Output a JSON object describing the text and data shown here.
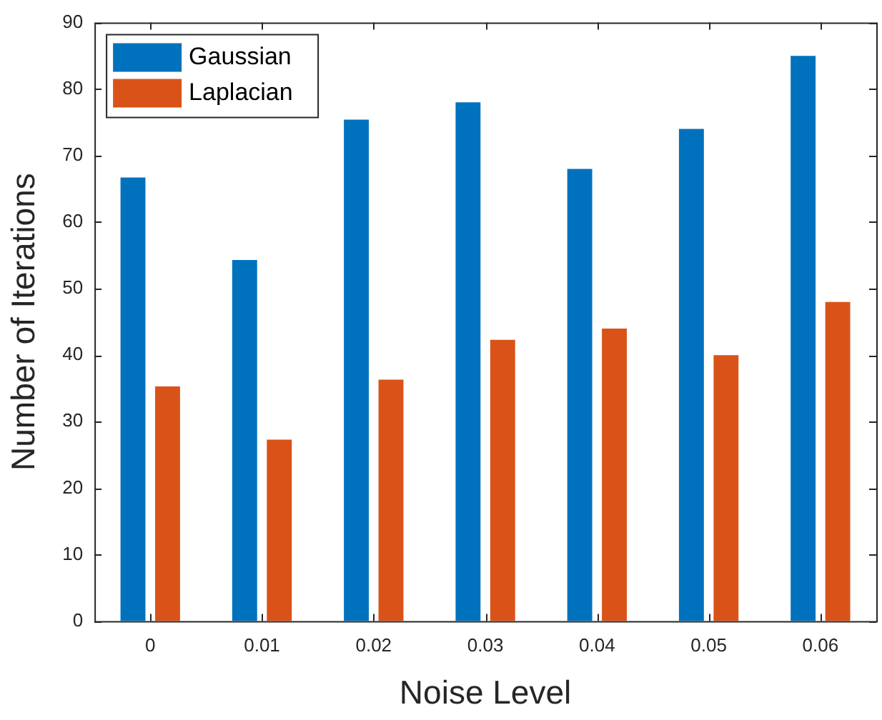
{
  "chart_data": {
    "type": "bar",
    "xlabel": "Noise Level",
    "ylabel": "Number of Iterations",
    "categories": [
      "0",
      "0.01",
      "0.02",
      "0.03",
      "0.04",
      "0.05",
      "0.06"
    ],
    "series": [
      {
        "name": "Gaussian",
        "color": "#0072bd",
        "values": [
          66.7,
          54.3,
          75.4,
          78,
          68,
          74,
          85
        ]
      },
      {
        "name": "Laplacian",
        "color": "#d95319",
        "values": [
          35.3,
          27.3,
          36.3,
          42.3,
          44,
          40,
          48
        ]
      }
    ],
    "ylim": [
      0,
      90
    ],
    "yticks": [
      0,
      10,
      20,
      30,
      40,
      50,
      60,
      70,
      80,
      90
    ],
    "grid": false,
    "legend": "top left"
  }
}
